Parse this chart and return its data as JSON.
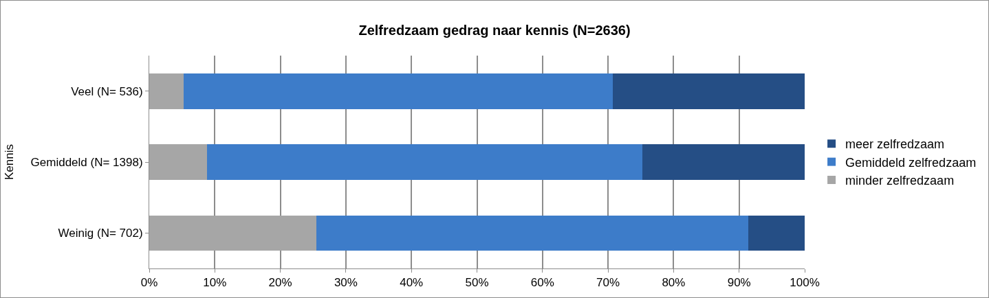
{
  "chart_data": {
    "type": "bar",
    "orientation": "horizontal",
    "stacked": true,
    "title": "Zelfredzaam gedrag naar kennis (N=2636)",
    "ylabel": "Kennis",
    "categories": [
      "Veel (N= 536)",
      "Gemiddeld (N= 1398)",
      "Weinig (N= 702)"
    ],
    "series": [
      {
        "name": "minder zelfredzaam",
        "color": "#a6a6a6",
        "values": [
          5.2,
          8.8,
          25.5
        ]
      },
      {
        "name": "Gemiddeld zelfredzaam",
        "color": "#3d7cc9",
        "values": [
          65.5,
          66.4,
          65.9
        ]
      },
      {
        "name": "meer zelfredzaam",
        "color": "#254e85",
        "values": [
          29.3,
          24.8,
          8.6
        ]
      }
    ],
    "xlim": [
      0,
      100
    ],
    "xticks": [
      {
        "value": 0,
        "label": "0%"
      },
      {
        "value": 10,
        "label": "10%"
      },
      {
        "value": 20,
        "label": "20%"
      },
      {
        "value": 30,
        "label": "30%"
      },
      {
        "value": 40,
        "label": "40%"
      },
      {
        "value": 50,
        "label": "50%"
      },
      {
        "value": 60,
        "label": "60%"
      },
      {
        "value": 70,
        "label": "70%"
      },
      {
        "value": 80,
        "label": "80%"
      },
      {
        "value": 90,
        "label": "90%"
      },
      {
        "value": 100,
        "label": "100%"
      }
    ],
    "grid": "x",
    "legend": "right"
  }
}
